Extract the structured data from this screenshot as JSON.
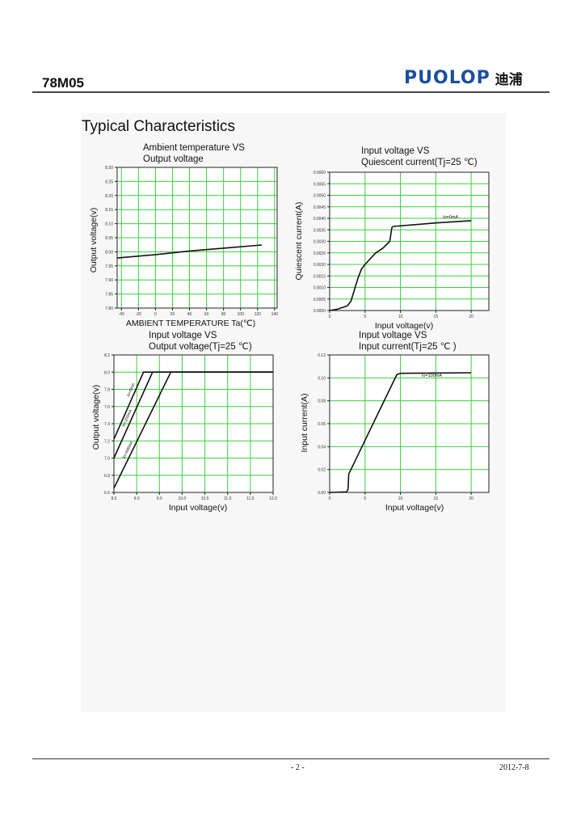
{
  "header": {
    "part_number": "78M05",
    "logo_en": "PUOLOP",
    "logo_cn": "迪浦",
    "brand_color": "#1b4f9c"
  },
  "section_title": "Typical Characteristics",
  "footer": {
    "page": "- 2 -",
    "date": "2012-7-8"
  },
  "grid_color": "#3ccf3c",
  "chart_data": [
    {
      "type": "line",
      "title": [
        "Ambient temperature VS",
        "Output voltage"
      ],
      "xlabel": "AMBIENT TEMPERATURE Ta(℃)",
      "ylabel": "Output voltage(v)",
      "xlim": [
        -45,
        143
      ],
      "ylim": [
        7.8,
        8.3
      ],
      "xticks": [
        -40,
        -20,
        0,
        20,
        40,
        60,
        80,
        100,
        120,
        140
      ],
      "xtick_labels": [
        "-40",
        "-20",
        "0",
        "20",
        "40",
        "60",
        "80",
        "100",
        "120",
        "140"
      ],
      "yticks": [
        7.8,
        7.85,
        7.9,
        7.95,
        8.0,
        8.05,
        8.1,
        8.15,
        8.2,
        8.25,
        8.3
      ],
      "ytick_labels": [
        "7.80",
        "7.85",
        "7.90",
        "7.95",
        "8.00",
        "8.05",
        "8.10",
        "8.15",
        "8.20",
        "8.25",
        "8.30"
      ],
      "grid": true,
      "series": [
        {
          "points": [
            [
              -45,
              7.978
            ],
            [
              0,
              7.99
            ],
            [
              40,
              8.003
            ],
            [
              80,
              8.013
            ],
            [
              125,
              8.024
            ]
          ]
        }
      ]
    },
    {
      "type": "line",
      "title": [
        "Input voltage VS",
        "Quiescent current(Tj=25 ℃)"
      ],
      "xlabel": "Input voltage(v)",
      "ylabel": "Quiescent current(A)",
      "xlim": [
        0,
        22.5
      ],
      "ylim": [
        0,
        0.006
      ],
      "xticks": [
        0,
        5,
        10,
        15,
        20
      ],
      "xtick_labels": [
        "0",
        "5",
        "10",
        "15",
        "20"
      ],
      "yticks": [
        0,
        0.0005,
        0.001,
        0.0015,
        0.002,
        0.0025,
        0.003,
        0.0035,
        0.004,
        0.0045,
        0.005,
        0.0055,
        0.006
      ],
      "ytick_labels": [
        "0.0000",
        "0.0005",
        "0.0010",
        "0.0015",
        "0.0020",
        "0.0025",
        "0.0030",
        "0.0035",
        "0.0040",
        "0.0045",
        "0.0050",
        "0.0055",
        "0.0060"
      ],
      "grid": true,
      "annotation": {
        "text": "Io=0mA",
        "at": [
          16,
          0.004
        ]
      },
      "series": [
        {
          "name": "Io=0mA",
          "points": [
            [
              0,
              0
            ],
            [
              1,
              5e-05
            ],
            [
              2.5,
              0.0002
            ],
            [
              3,
              0.0004
            ],
            [
              3.5,
              0.0009
            ],
            [
              4,
              0.0014
            ],
            [
              4.5,
              0.0018
            ],
            [
              5,
              0.002
            ],
            [
              6.5,
              0.0025
            ],
            [
              7.5,
              0.0027
            ],
            [
              8.5,
              0.003
            ],
            [
              8.8,
              0.0036
            ],
            [
              9,
              0.00365
            ],
            [
              15,
              0.0038
            ],
            [
              20,
              0.0039
            ]
          ]
        }
      ]
    },
    {
      "type": "line",
      "title": [
        "Input voltage  VS",
        "Output voltage(Tj=25 ℃)"
      ],
      "xlabel": "Input voltage(v)",
      "ylabel": "Output voltage(v)",
      "xlim": [
        8.5,
        12.0
      ],
      "ylim": [
        6.6,
        8.2
      ],
      "xticks": [
        8.5,
        9.0,
        9.5,
        10.0,
        10.5,
        11.0,
        11.5,
        12.0
      ],
      "xtick_labels": [
        "8.5",
        "9.0",
        "9.5",
        "10.0",
        "10.5",
        "11.0",
        "11.5",
        "12.0"
      ],
      "yticks": [
        6.6,
        6.8,
        7.0,
        7.2,
        7.4,
        7.6,
        7.8,
        8.0,
        8.2
      ],
      "ytick_labels": [
        "6.6",
        "6.8",
        "7.0",
        "7.2",
        "7.4",
        "7.6",
        "7.8",
        "8.0",
        "8.2"
      ],
      "grid": true,
      "series": [
        {
          "name": "Io=0mA",
          "points": [
            [
              8.5,
              7.22
            ],
            [
              9.15,
              8.0
            ],
            [
              12.0,
              8.0
            ]
          ]
        },
        {
          "name": "Io=200mA",
          "points": [
            [
              8.5,
              7.0
            ],
            [
              9.35,
              8.0
            ],
            [
              12.0,
              8.0
            ]
          ]
        },
        {
          "name": "Io=500mA",
          "points": [
            [
              8.5,
              6.65
            ],
            [
              9.75,
              8.0
            ],
            [
              12.0,
              8.0
            ]
          ]
        }
      ]
    },
    {
      "type": "line",
      "title": [
        "Input voltage VS",
        "Input current(Tj=25 ℃ )"
      ],
      "xlabel": "Input voltage(v)",
      "ylabel": "Input current(A)",
      "xlim": [
        0,
        22.5
      ],
      "ylim": [
        0,
        0.12
      ],
      "xticks": [
        0,
        5,
        10,
        15,
        20
      ],
      "xtick_labels": [
        "0",
        "5",
        "10",
        "15",
        "20"
      ],
      "yticks": [
        0,
        0.02,
        0.04,
        0.06,
        0.08,
        0.1,
        0.12
      ],
      "ytick_labels": [
        "0.00",
        "0.02",
        "0.04",
        "0.06",
        "0.08",
        "0.10",
        "0.12"
      ],
      "grid": true,
      "annotation": {
        "text": "Io=100mA",
        "at": [
          13,
          0.101
        ]
      },
      "series": [
        {
          "name": "Io=100mA",
          "points": [
            [
              0,
              0
            ],
            [
              2.4,
              0.0005
            ],
            [
              2.6,
              0.003
            ],
            [
              2.7,
              0.016
            ],
            [
              9.5,
              0.103
            ],
            [
              10,
              0.104
            ],
            [
              20,
              0.1045
            ]
          ]
        }
      ]
    }
  ]
}
